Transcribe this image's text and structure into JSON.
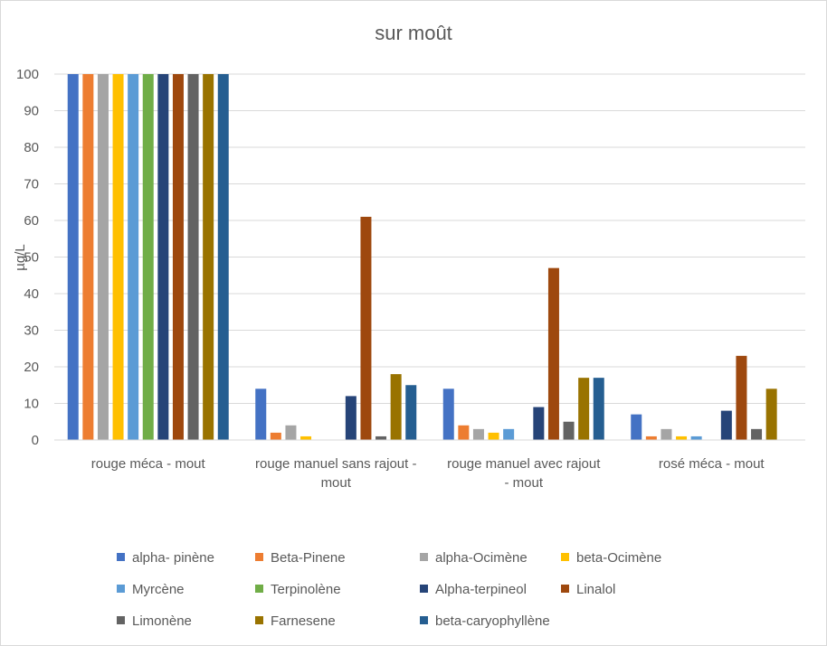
{
  "chart_data": {
    "type": "bar",
    "title": "sur moût",
    "xlabel": "",
    "ylabel": "µg/L",
    "ylim": [
      0,
      100
    ],
    "yticks": [
      0,
      10,
      20,
      30,
      40,
      50,
      60,
      70,
      80,
      90,
      100
    ],
    "grid": true,
    "legend_position": "bottom",
    "categories": [
      [
        "rouge méca - mout"
      ],
      [
        "rouge manuel sans rajout -",
        "mout"
      ],
      [
        "rouge manuel avec rajout",
        "- mout"
      ],
      [
        "rosé méca - mout"
      ]
    ],
    "series": [
      {
        "name": "alpha- pinène",
        "color": "#4472C4",
        "values": [
          100,
          14,
          14,
          7
        ]
      },
      {
        "name": "Beta-Pinene",
        "color": "#ED7D31",
        "values": [
          100,
          2,
          4,
          1
        ]
      },
      {
        "name": "alpha-Ocimène",
        "color": "#A5A5A5",
        "values": [
          100,
          4,
          3,
          3
        ]
      },
      {
        "name": "beta-Ocimène",
        "color": "#FFC000",
        "values": [
          100,
          1,
          2,
          1
        ]
      },
      {
        "name": "Myrcène",
        "color": "#5B9BD5",
        "values": [
          100,
          0,
          3,
          1
        ]
      },
      {
        "name": "Terpinolène",
        "color": "#70AD47",
        "values": [
          100,
          0,
          0,
          0
        ]
      },
      {
        "name": "Alpha-terpineol",
        "color": "#264478",
        "values": [
          100,
          12,
          9,
          8
        ]
      },
      {
        "name": "Linalol",
        "color": "#9E480E",
        "values": [
          100,
          61,
          47,
          23
        ]
      },
      {
        "name": "Limonène",
        "color": "#636363",
        "values": [
          100,
          1,
          5,
          3
        ]
      },
      {
        "name": "Farnesene",
        "color": "#997300",
        "values": [
          100,
          18,
          17,
          14
        ]
      },
      {
        "name": "beta-caryophyllène",
        "color": "#255E91",
        "values": [
          100,
          15,
          17,
          0
        ]
      }
    ]
  }
}
